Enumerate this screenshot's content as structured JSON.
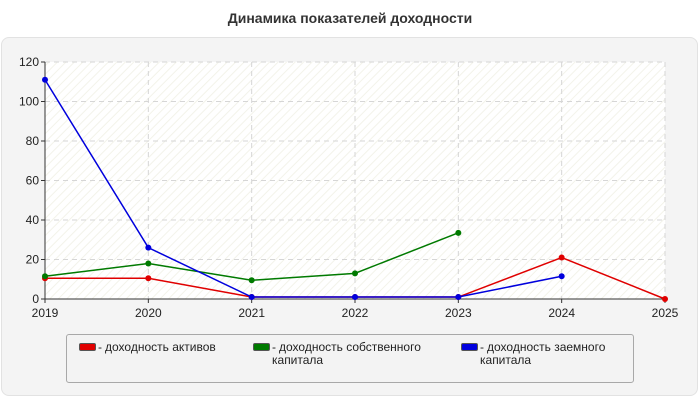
{
  "colors": {
    "red": "#e00000",
    "green": "#007a00",
    "blue": "#0000dd"
  },
  "chart_data": {
    "type": "line",
    "title": "Динамика показателей доходности",
    "xlabel": "",
    "ylabel": "",
    "x": [
      "2019",
      "2020",
      "2021",
      "2022",
      "2023",
      "2024",
      "2025"
    ],
    "y_ticks": [
      "0",
      "20",
      "40",
      "60",
      "80",
      "100",
      "120"
    ],
    "ylim": [
      0,
      120
    ],
    "grid": true,
    "legend_position": "bottom",
    "series": [
      {
        "name": "доходность активов",
        "color": "#e00000",
        "values": [
          10.5,
          10.5,
          1,
          1,
          1,
          21,
          0
        ]
      },
      {
        "name": "доходность собственного капитала",
        "color": "#007a00",
        "values": [
          11.5,
          18,
          9.5,
          13,
          33.5,
          null,
          null
        ]
      },
      {
        "name": "доходность заемного капитала",
        "color": "#0000dd",
        "values": [
          111,
          26,
          1,
          1,
          1,
          11.5,
          null
        ]
      }
    ]
  },
  "legend": {
    "dash": "-",
    "items": [
      {
        "line1": "доходность активов",
        "line2": ""
      },
      {
        "line1": "доходность собственного",
        "line2": "капитала"
      },
      {
        "line1": "доходность заемного",
        "line2": "капитала"
      }
    ]
  }
}
